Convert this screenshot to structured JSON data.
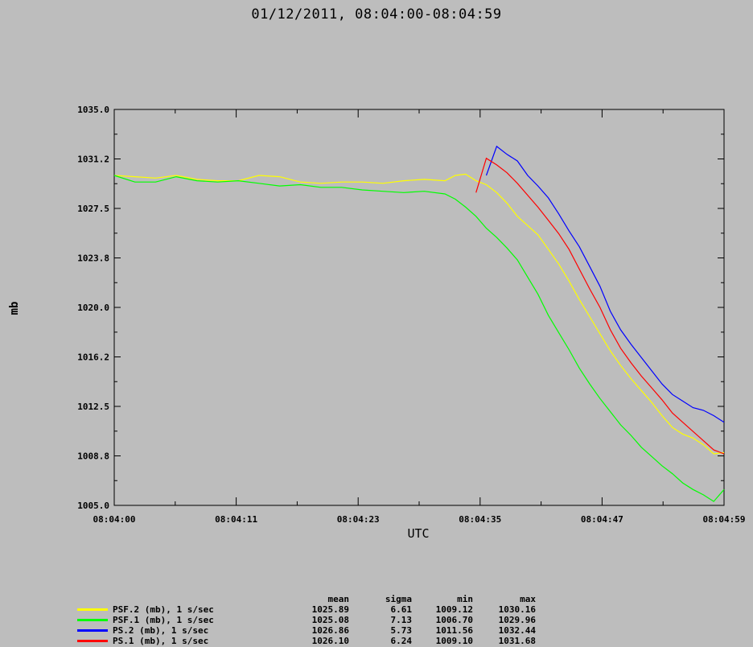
{
  "title": "01/12/2011, 08:04:00-08:04:59",
  "chart_data": {
    "type": "line",
    "ylabel": "mb",
    "xlabel": "UTC",
    "ylim": [
      1005.0,
      1035.0
    ],
    "yticks": [
      "1005.0",
      "1008.8",
      "1012.5",
      "1016.2",
      "1020.0",
      "1023.8",
      "1027.5",
      "1031.2",
      "1035.0"
    ],
    "xticks": [
      "08:04:00",
      "08:04:11",
      "08:04:23",
      "08:04:35",
      "08:04:47",
      "08:04:59"
    ],
    "grid": false,
    "series": [
      {
        "name": "PSF.2 (mb), 1 s/sec",
        "color": "#ffff00",
        "x": [
          0,
          2,
          4,
          6,
          8,
          10,
          12,
          14,
          16,
          18,
          20,
          22,
          24,
          26,
          28,
          30,
          32,
          33,
          34,
          35,
          36,
          37,
          38,
          39,
          40,
          41,
          42,
          43,
          44,
          45,
          46,
          47,
          48,
          49,
          50,
          51,
          52,
          53,
          54,
          55,
          56,
          57,
          58,
          59
        ],
        "y": [
          1030.0,
          1029.9,
          1029.8,
          1030.0,
          1029.7,
          1029.6,
          1029.6,
          1030.0,
          1029.9,
          1029.5,
          1029.4,
          1029.5,
          1029.5,
          1029.4,
          1029.6,
          1029.7,
          1029.6,
          1030.0,
          1030.1,
          1029.6,
          1029.3,
          1028.7,
          1027.9,
          1026.9,
          1026.2,
          1025.5,
          1024.4,
          1023.3,
          1022.0,
          1020.6,
          1019.3,
          1018.0,
          1016.7,
          1015.6,
          1014.6,
          1013.7,
          1012.8,
          1011.8,
          1010.9,
          1010.4,
          1010.1,
          1009.6,
          1008.9,
          1009.0
        ],
        "stats": {
          "mean": "1025.89",
          "sigma": "6.61",
          "min": "1009.12",
          "max": "1030.16"
        }
      },
      {
        "name": "PSF.1 (mb), 1 s/sec",
        "color": "#00ff00",
        "x": [
          0,
          2,
          4,
          6,
          8,
          10,
          12,
          14,
          16,
          18,
          20,
          22,
          24,
          26,
          28,
          30,
          32,
          33,
          34,
          35,
          36,
          37,
          38,
          39,
          40,
          41,
          42,
          43,
          44,
          45,
          46,
          47,
          48,
          49,
          50,
          51,
          52,
          53,
          54,
          55,
          56,
          57,
          58,
          59
        ],
        "y": [
          1030.0,
          1029.5,
          1029.5,
          1029.9,
          1029.6,
          1029.5,
          1029.6,
          1029.4,
          1029.2,
          1029.3,
          1029.1,
          1029.1,
          1028.9,
          1028.8,
          1028.7,
          1028.8,
          1028.6,
          1028.2,
          1027.6,
          1026.9,
          1026.0,
          1025.3,
          1024.5,
          1023.6,
          1022.3,
          1021.0,
          1019.4,
          1018.1,
          1016.8,
          1015.4,
          1014.2,
          1013.1,
          1012.1,
          1011.1,
          1010.3,
          1009.4,
          1008.7,
          1008.0,
          1007.4,
          1006.7,
          1006.2,
          1005.8,
          1005.3,
          1006.2
        ],
        "stats": {
          "mean": "1025.08",
          "sigma": "7.13",
          "min": "1006.70",
          "max": "1029.96"
        }
      },
      {
        "name": "PS.2 (mb), 1 s/sec",
        "color": "#0000ff",
        "x": [
          36,
          37,
          38,
          39,
          40,
          41,
          42,
          43,
          44,
          45,
          46,
          47,
          48,
          49,
          50,
          51,
          52,
          53,
          54,
          55,
          56,
          57,
          58,
          59
        ],
        "y": [
          1030.0,
          1032.2,
          1031.6,
          1031.1,
          1030.0,
          1029.2,
          1028.3,
          1027.1,
          1025.8,
          1024.6,
          1023.1,
          1021.6,
          1019.7,
          1018.3,
          1017.2,
          1016.2,
          1015.2,
          1014.2,
          1013.4,
          1012.9,
          1012.4,
          1012.2,
          1011.8,
          1011.3
        ],
        "stats": {
          "mean": "1026.86",
          "sigma": "5.73",
          "min": "1011.56",
          "max": "1032.44"
        }
      },
      {
        "name": "PS.1 (mb), 1 s/sec",
        "color": "#ff0000",
        "x": [
          35,
          36,
          37,
          38,
          39,
          40,
          41,
          42,
          43,
          44,
          45,
          46,
          47,
          48,
          49,
          50,
          51,
          52,
          53,
          54,
          55,
          56,
          57,
          58,
          59
        ],
        "y": [
          1028.7,
          1031.3,
          1030.8,
          1030.2,
          1029.4,
          1028.5,
          1027.6,
          1026.6,
          1025.6,
          1024.4,
          1022.9,
          1021.4,
          1020.0,
          1018.3,
          1016.9,
          1015.8,
          1014.8,
          1013.9,
          1013.0,
          1012.0,
          1011.3,
          1010.6,
          1009.9,
          1009.2,
          1008.9
        ],
        "stats": {
          "mean": "1026.10",
          "sigma": "6.24",
          "min": "1009.10",
          "max": "1031.68"
        }
      }
    ]
  },
  "legend": {
    "headers": {
      "mean": "mean",
      "sigma": "sigma",
      "min": "min",
      "max": "max"
    }
  }
}
